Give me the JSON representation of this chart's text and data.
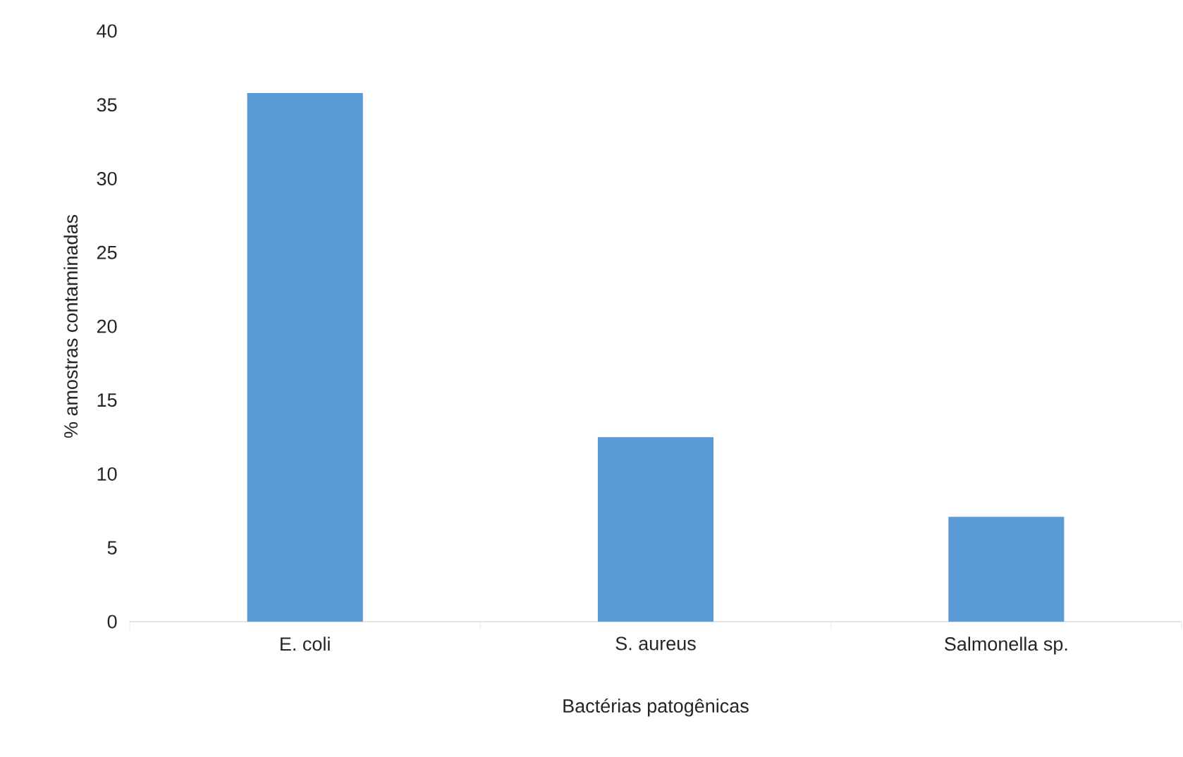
{
  "chart_data": {
    "type": "bar",
    "xlabel": "Bactérias patogênicas",
    "ylabel": "% amostras contaminadas",
    "categories": [
      "E. coli",
      "S. aureus",
      "Salmonella sp."
    ],
    "values": [
      35.8,
      12.5,
      7.1
    ],
    "color": "#5b9bd5",
    "ylim": [
      0,
      40
    ],
    "yticks": [
      0,
      5,
      10,
      15,
      20,
      25,
      30,
      35,
      40
    ],
    "grid": false
  }
}
